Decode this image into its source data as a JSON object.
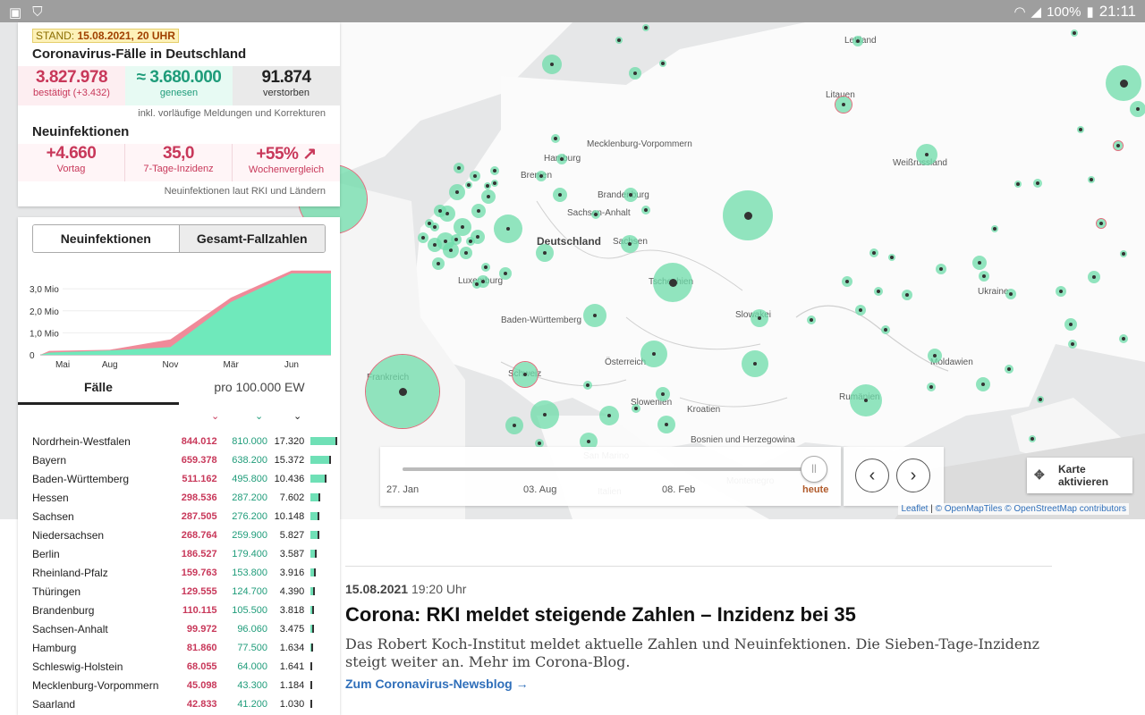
{
  "statusbar": {
    "battery": "100%",
    "time": "21:11"
  },
  "summary": {
    "stand_label": "STAND:",
    "stand_value": "15.08.2021, 20 UHR",
    "title": "Coronavirus-Fälle in Deutschland",
    "confirmed": "3.827.978",
    "confirmed_label": "bestätigt (+3.432)",
    "recovered": "≈ 3.680.000",
    "recovered_label": "genesen",
    "deaths": "91.874",
    "deaths_label": "verstorben",
    "note1": "inkl. vorläufige Meldungen und Korrekturen",
    "new_title": "Neuinfektionen",
    "new_prev": "+4.660",
    "new_prev_label": "Vortag",
    "incidence": "35,0",
    "incidence_label": "7-Tage-Inzidenz",
    "weekly": "+55% ↗",
    "weekly_label": "Wochenvergleich",
    "note2": "Neuinfektionen laut RKI und Ländern"
  },
  "toggle": {
    "left": "Neuinfektionen",
    "right": "Gesamt-Fallzahlen"
  },
  "chart_data": {
    "type": "area",
    "x": [
      "Mai",
      "Aug",
      "Nov",
      "Mär",
      "Jun"
    ],
    "y_ticks": [
      "3,0 Mio",
      "2,0 Mio",
      "1,0 Mio",
      "0"
    ],
    "series": [
      {
        "values": [
          0.1,
          0.2,
          0.35,
          2.4,
          3.7
        ]
      },
      {
        "values": [
          0.18,
          0.23,
          0.7,
          2.6,
          3.83
        ]
      }
    ],
    "ylim": [
      0,
      3.9
    ],
    "colors": {
      "recovered": "#6fe9bb",
      "confirmed": "#f08a99"
    }
  },
  "tabs": {
    "cases": "Fälle",
    "per100k": "pro 100.000 EW"
  },
  "states": [
    {
      "name": "Nordrhein-Westfalen",
      "cases": "844.012",
      "recovered": "810.000",
      "deaths": "17.320",
      "share": 1.0
    },
    {
      "name": "Bayern",
      "cases": "659.378",
      "recovered": "638.200",
      "deaths": "15.372",
      "share": 0.78
    },
    {
      "name": "Baden-Württemberg",
      "cases": "511.162",
      "recovered": "495.800",
      "deaths": "10.436",
      "share": 0.61
    },
    {
      "name": "Hessen",
      "cases": "298.536",
      "recovered": "287.200",
      "deaths": "7.602",
      "share": 0.35
    },
    {
      "name": "Sachsen",
      "cases": "287.505",
      "recovered": "276.200",
      "deaths": "10.148",
      "share": 0.34
    },
    {
      "name": "Niedersachsen",
      "cases": "268.764",
      "recovered": "259.900",
      "deaths": "5.827",
      "share": 0.32
    },
    {
      "name": "Berlin",
      "cases": "186.527",
      "recovered": "179.400",
      "deaths": "3.587",
      "share": 0.22
    },
    {
      "name": "Rheinland-Pfalz",
      "cases": "159.763",
      "recovered": "153.800",
      "deaths": "3.916",
      "share": 0.19
    },
    {
      "name": "Thüringen",
      "cases": "129.555",
      "recovered": "124.700",
      "deaths": "4.390",
      "share": 0.15
    },
    {
      "name": "Brandenburg",
      "cases": "110.115",
      "recovered": "105.500",
      "deaths": "3.818",
      "share": 0.13
    },
    {
      "name": "Sachsen-Anhalt",
      "cases": "99.972",
      "recovered": "96.060",
      "deaths": "3.475",
      "share": 0.12
    },
    {
      "name": "Hamburg",
      "cases": "81.860",
      "recovered": "77.500",
      "deaths": "1.634",
      "share": 0.1
    },
    {
      "name": "Schleswig-Holstein",
      "cases": "68.055",
      "recovered": "64.000",
      "deaths": "1.641",
      "share": 0.08
    },
    {
      "name": "Mecklenburg-Vorpommern",
      "cases": "45.098",
      "recovered": "43.300",
      "deaths": "1.184",
      "share": 0.05
    },
    {
      "name": "Saarland",
      "cases": "42.833",
      "recovered": "41.200",
      "deaths": "1.030",
      "share": 0.05
    }
  ],
  "map_labels": [
    "Lettland",
    "Litauen",
    "Mecklenburg-Vorpommern",
    "Hamburg",
    "Bremen",
    "Brandenburg",
    "Sachsen-Anhalt",
    "Deutschland",
    "Sachsen",
    "Weißrussland",
    "Luxemburg",
    "Tschechien",
    "Baden-Württemberg",
    "Slowakei",
    "Ukraine",
    "Österreich",
    "Moldawien",
    "Schweiz",
    "Frankreich",
    "Slowenien",
    "Kroatien",
    "Rumänien",
    "Bosnien und Herzegowina",
    "San Marino",
    "Italien",
    "Montenegro"
  ],
  "timeline": {
    "d1": "27. Jan",
    "d2": "03. Aug",
    "d3": "08. Feb",
    "today": "heute",
    "progress": 1.0
  },
  "karte": {
    "line1": "Karte",
    "line2": "aktivieren"
  },
  "attribution": {
    "leaflet": "Leaflet",
    "omt": "© OpenMapTiles",
    "osm": "© OpenStreetMap contributors"
  },
  "article": {
    "date": "15.08.2021",
    "time": "19:20 Uhr",
    "title": "Corona: RKI meldet steigende Zahlen – Inzidenz bei 35",
    "text": "Das Robert Koch-Institut meldet aktuelle Zahlen und Neuinfektionen. Die Sieben-Tage-Inzidenz steigt weiter an. Mehr im Corona-Blog.",
    "link": "Zum Coronavirus-Newsblog →"
  }
}
